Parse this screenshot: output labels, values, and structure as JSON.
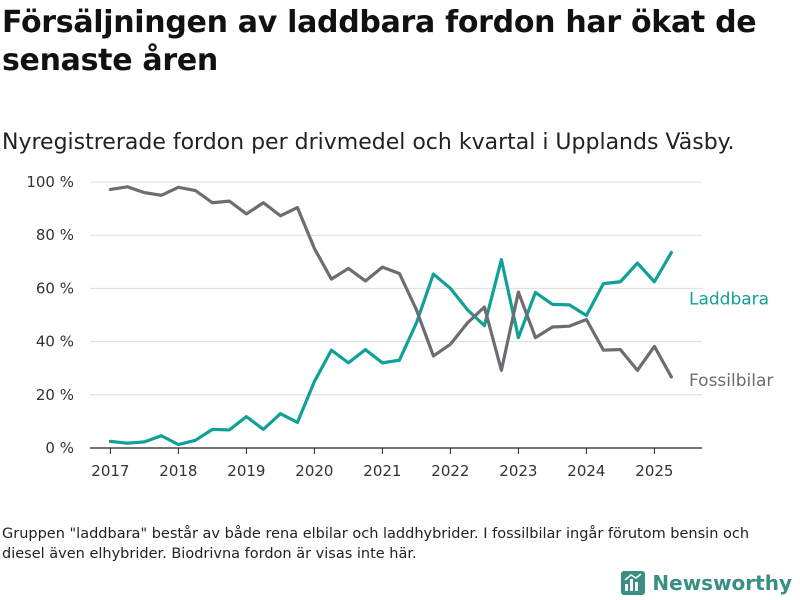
{
  "header": {
    "title": "Försäljningen av laddbara fordon har ökat de senaste åren",
    "subtitle": "Nyregistrerade fordon per drivmedel och kvartal i Upplands Väsby."
  },
  "footer": {
    "note": "Gruppen \"laddbara\" består av både rena elbilar och laddhybrider. I fossilbilar ingår förutom bensin och diesel även elhybrider. Biodrivna fordon är visas inte här.",
    "brand": "Newsworthy"
  },
  "colors": {
    "laddbara": "#0fa197",
    "fossil": "#6e6c72",
    "grid": "#dddddd",
    "brand": "#3a8f84"
  },
  "chart_data": {
    "type": "line",
    "title": "Försäljningen av laddbara fordon har ökat de senaste åren",
    "subtitle": "Nyregistrerade fordon per drivmedel och kvartal i Upplands Väsby.",
    "x_unit": "year (quarterly)",
    "x": [
      2017.0,
      2017.25,
      2017.5,
      2017.75,
      2018.0,
      2018.25,
      2018.5,
      2018.75,
      2019.0,
      2019.25,
      2019.5,
      2019.75,
      2020.0,
      2020.25,
      2020.5,
      2020.75,
      2021.0,
      2021.25,
      2021.5,
      2021.75,
      2022.0,
      2022.25,
      2022.5,
      2022.75,
      2023.0,
      2023.25,
      2023.5,
      2023.75,
      2024.0,
      2024.25,
      2024.5,
      2024.75,
      2025.0,
      2025.25
    ],
    "xticks": [
      2017,
      2018,
      2019,
      2020,
      2021,
      2022,
      2023,
      2024,
      2025
    ],
    "yticks": [
      0,
      20,
      40,
      60,
      80,
      100
    ],
    "ytick_labels": [
      "0 %",
      "20 %",
      "40 %",
      "60 %",
      "80 %",
      "100 %"
    ],
    "ylim": [
      0,
      100
    ],
    "grid": "horizontal",
    "series": [
      {
        "name": "Laddbara",
        "color": "#0fa197",
        "values": [
          2.5,
          1.8,
          2.3,
          4.6,
          1.3,
          2.9,
          7.0,
          6.8,
          11.8,
          7.0,
          12.9,
          9.6,
          25.0,
          36.8,
          32.0,
          37.0,
          32.0,
          33.0,
          47.0,
          65.4,
          60.0,
          52.0,
          46.0,
          70.8,
          41.5,
          58.5,
          54.0,
          53.8,
          49.8,
          61.8,
          62.5,
          69.5,
          62.5,
          73.5
        ]
      },
      {
        "name": "Fossilbilar",
        "color": "#6e6c72",
        "values": [
          97.2,
          98.2,
          96.0,
          95.0,
          98.0,
          96.8,
          92.2,
          92.8,
          88.0,
          92.2,
          87.3,
          90.4,
          75.0,
          63.5,
          67.5,
          62.8,
          68.0,
          65.6,
          52.0,
          34.6,
          39.0,
          47.0,
          53.0,
          29.2,
          58.6,
          41.5,
          45.5,
          45.8,
          48.3,
          36.8,
          37.0,
          29.2,
          38.2,
          26.7
        ]
      }
    ]
  }
}
